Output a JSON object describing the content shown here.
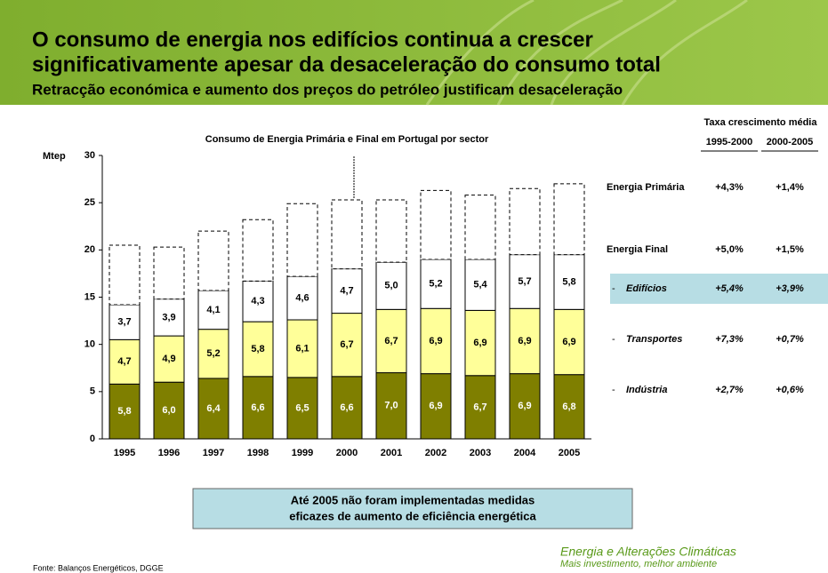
{
  "header": {
    "title_lines": [
      "O consumo de energia nos edifícios continua a crescer",
      "significativamente apesar da desaceleração do consumo total"
    ],
    "subtitle": "Retracção económica e aumento dos preços do petróleo justificam desaceleração"
  },
  "chart_data": {
    "type": "stacked_bar",
    "title": "Consumo de Energia Primária e Final em Portugal por sector",
    "y_label": "Mtep",
    "categories": [
      "1995",
      "1996",
      "1997",
      "1998",
      "1999",
      "2000",
      "2001",
      "2002",
      "2003",
      "2004",
      "2005"
    ],
    "series": [
      {
        "color": "#7f7f00",
        "values": [
          5.8,
          6.0,
          6.4,
          6.6,
          6.5,
          6.6,
          7.0,
          6.9,
          6.7,
          6.9,
          6.8
        ],
        "value_labels": [
          "5,8",
          "6,0",
          "6,4",
          "6,6",
          "6,5",
          "6,6",
          "7,0",
          "6,9",
          "6,7",
          "6,9",
          "6,8"
        ]
      },
      {
        "color": "#ffff99",
        "values": [
          4.7,
          4.9,
          5.2,
          5.8,
          6.1,
          6.7,
          6.7,
          6.9,
          6.9,
          6.9,
          6.9
        ],
        "value_labels": [
          "4,7",
          "4,9",
          "5,2",
          "5,8",
          "6,1",
          "6,7",
          "6,7",
          "6,9",
          "6,9",
          "6,9",
          "6,9"
        ]
      },
      {
        "color": "#ffffff",
        "values": [
          3.7,
          3.9,
          4.1,
          4.3,
          4.6,
          4.7,
          5.0,
          5.2,
          5.4,
          5.7,
          5.8
        ],
        "value_labels": [
          "3,7",
          "3,9",
          "4,1",
          "4,3",
          "4,6",
          "4,7",
          "5,0",
          "5,2",
          "5,4",
          "5,7",
          "5,8"
        ]
      },
      {
        "color": "#ffffff",
        "dashed": true,
        "values": [
          6.3,
          5.5,
          6.3,
          6.5,
          7.7,
          7.3,
          6.6,
          7.3,
          6.8,
          7.0,
          7.5
        ]
      }
    ],
    "ylim": [
      0,
      30
    ],
    "yticks": [
      0,
      5,
      10,
      15,
      20,
      25,
      30
    ]
  },
  "table": {
    "header": "Taxa crescimento média",
    "columns": [
      "1995-2000",
      "2000-2005"
    ],
    "rows": [
      {
        "label": "Energia Primária",
        "values": [
          "+4,3%",
          "+1,4%"
        ]
      },
      {
        "label": "Energia Final",
        "values": [
          "+5,0%",
          "+1,5%"
        ]
      },
      {
        "marker": "-",
        "label": "Edifícios",
        "values": [
          "+5,4%",
          "+3,9%"
        ]
      },
      {
        "marker": "-",
        "label": "Transportes",
        "values": [
          "+7,3%",
          "+0,7%"
        ]
      },
      {
        "marker": "-",
        "label": "Indústria",
        "values": [
          "+2,7%",
          "+0,6%"
        ]
      }
    ]
  },
  "note": [
    "Até 2005 não foram implementadas medidas",
    "eficazes de aumento de eficiência energética"
  ],
  "footer": {
    "brand": "Energia e Alterações Climáticas",
    "tagline": "Mais investimento, melhor ambiente",
    "source": "Fonte: Balanços Energéticos, DGGE"
  }
}
